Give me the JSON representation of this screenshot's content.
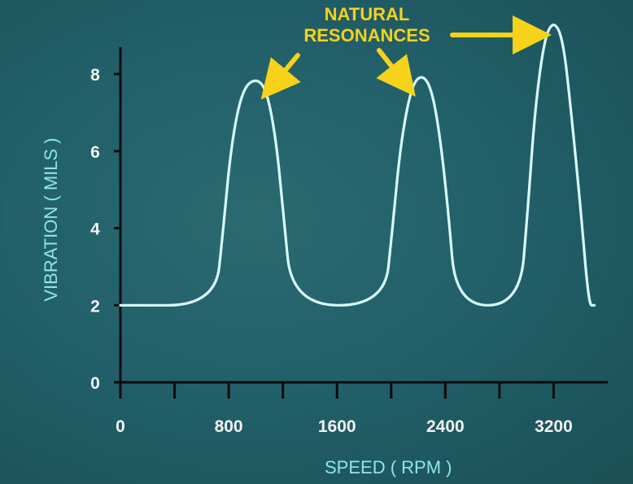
{
  "chart_data": {
    "type": "line",
    "title": "",
    "xlabel": "SPEED ( RPM )",
    "ylabel": "VIBRATION ( MILS )",
    "xlim": [
      0,
      3600
    ],
    "ylim": [
      0,
      9.5
    ],
    "x_ticks": [
      0,
      400,
      800,
      1200,
      1600,
      2000,
      2400,
      2800,
      3200
    ],
    "x_tick_labels": [
      "0",
      "",
      "800",
      "",
      "1600",
      "",
      "2400",
      "",
      "3200"
    ],
    "y_ticks": [
      0,
      2,
      4,
      6,
      8
    ],
    "y_tick_labels": [
      "0",
      "2",
      "4",
      "6",
      "8"
    ],
    "grid": false,
    "series": [
      {
        "color": "#d9fbff",
        "points": [
          [
            0,
            2
          ],
          [
            700,
            2
          ],
          [
            760,
            4
          ],
          [
            820,
            6.2
          ],
          [
            900,
            7.6
          ],
          [
            1000,
            7.9
          ],
          [
            1080,
            7.6
          ],
          [
            1150,
            6.3
          ],
          [
            1200,
            4.5
          ],
          [
            1270,
            2
          ],
          [
            1950,
            2
          ],
          [
            2010,
            4
          ],
          [
            2070,
            6.2
          ],
          [
            2150,
            7.7
          ],
          [
            2230,
            8.0
          ],
          [
            2300,
            7.6
          ],
          [
            2360,
            6.4
          ],
          [
            2420,
            4.5
          ],
          [
            2480,
            2
          ],
          [
            2950,
            2
          ],
          [
            3010,
            4.5
          ],
          [
            3060,
            7.0
          ],
          [
            3130,
            8.9
          ],
          [
            3200,
            9.4
          ],
          [
            3270,
            8.9
          ],
          [
            3330,
            7.0
          ],
          [
            3400,
            4.5
          ],
          [
            3460,
            2
          ],
          [
            3500,
            2
          ]
        ]
      }
    ],
    "annotation": {
      "lines": [
        "NATURAL",
        "RESONANCES"
      ],
      "color": "#f7d21a",
      "targets_x": [
        1000,
        2230,
        3200
      ]
    }
  }
}
